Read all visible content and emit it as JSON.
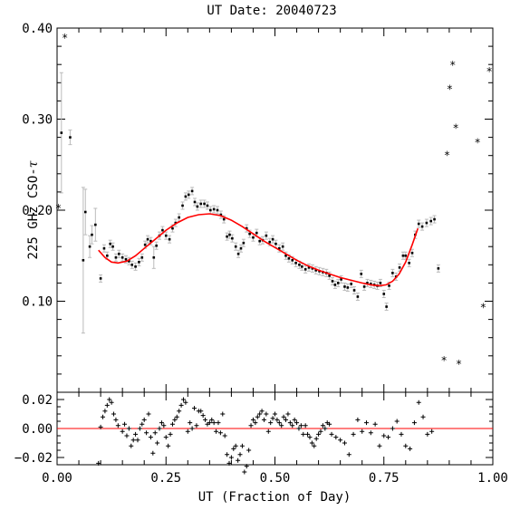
{
  "chart_data": {
    "type": "scatter",
    "title": "UT Date: 20040723",
    "xlabel": "UT (Fraction of Day)",
    "ylabel": "225 GHz CSO-",
    "ylabel_symbol": "τ",
    "xlim": [
      0.0,
      1.0
    ],
    "ylim": [
      0.0,
      0.4
    ],
    "x_ticks": [
      "0.00",
      "0.25",
      "0.50",
      "0.75",
      "1.00"
    ],
    "y_ticks": [
      "0.10",
      "0.20",
      "0.30",
      "0.40"
    ],
    "residual_ylim": [
      -0.025,
      0.025
    ],
    "residual_ticks": [
      "−0.02",
      "0.00",
      "0.02"
    ],
    "colors": {
      "fit": "#ff0000",
      "error_bar": "#bbbbbb",
      "points": "#000000",
      "axes": "#000000"
    },
    "measurements": [
      [
        0.01,
        0.285,
        0.066
      ],
      [
        0.03,
        0.28,
        0.008
      ],
      [
        0.06,
        0.145,
        0.08
      ],
      [
        0.065,
        0.198,
        0.025
      ],
      [
        0.075,
        0.16,
        0.012
      ],
      [
        0.08,
        0.173,
        0.01
      ],
      [
        0.088,
        0.184,
        0.018
      ],
      [
        0.1,
        0.125,
        0.004
      ],
      [
        0.108,
        0.158,
        0.004
      ],
      [
        0.115,
        0.15,
        0.004
      ],
      [
        0.122,
        0.163,
        0.004
      ],
      [
        0.128,
        0.16,
        0.004
      ],
      [
        0.135,
        0.148,
        0.004
      ],
      [
        0.142,
        0.152,
        0.004
      ],
      [
        0.15,
        0.148,
        0.004
      ],
      [
        0.158,
        0.146,
        0.004
      ],
      [
        0.165,
        0.144,
        0.004
      ],
      [
        0.172,
        0.14,
        0.004
      ],
      [
        0.18,
        0.138,
        0.004
      ],
      [
        0.188,
        0.143,
        0.004
      ],
      [
        0.195,
        0.148,
        0.004
      ],
      [
        0.202,
        0.162,
        0.004
      ],
      [
        0.208,
        0.168,
        0.004
      ],
      [
        0.215,
        0.166,
        0.004
      ],
      [
        0.222,
        0.148,
        0.012
      ],
      [
        0.228,
        0.161,
        0.004
      ],
      [
        0.235,
        0.172,
        0.004
      ],
      [
        0.242,
        0.178,
        0.004
      ],
      [
        0.25,
        0.172,
        0.004
      ],
      [
        0.258,
        0.168,
        0.004
      ],
      [
        0.265,
        0.18,
        0.004
      ],
      [
        0.272,
        0.186,
        0.004
      ],
      [
        0.28,
        0.192,
        0.004
      ],
      [
        0.288,
        0.205,
        0.004
      ],
      [
        0.295,
        0.215,
        0.004
      ],
      [
        0.302,
        0.217,
        0.004
      ],
      [
        0.31,
        0.221,
        0.004
      ],
      [
        0.316,
        0.209,
        0.004
      ],
      [
        0.322,
        0.204,
        0.004
      ],
      [
        0.33,
        0.207,
        0.004
      ],
      [
        0.338,
        0.207,
        0.004
      ],
      [
        0.345,
        0.205,
        0.004
      ],
      [
        0.352,
        0.2,
        0.004
      ],
      [
        0.36,
        0.201,
        0.004
      ],
      [
        0.368,
        0.2,
        0.004
      ],
      [
        0.376,
        0.195,
        0.004
      ],
      [
        0.383,
        0.19,
        0.004
      ],
      [
        0.39,
        0.171,
        0.004
      ],
      [
        0.396,
        0.173,
        0.004
      ],
      [
        0.402,
        0.169,
        0.004
      ],
      [
        0.41,
        0.16,
        0.004
      ],
      [
        0.416,
        0.152,
        0.004
      ],
      [
        0.422,
        0.158,
        0.004
      ],
      [
        0.428,
        0.164,
        0.004
      ],
      [
        0.435,
        0.18,
        0.004
      ],
      [
        0.442,
        0.174,
        0.004
      ],
      [
        0.45,
        0.17,
        0.004
      ],
      [
        0.458,
        0.175,
        0.004
      ],
      [
        0.465,
        0.166,
        0.004
      ],
      [
        0.472,
        0.167,
        0.004
      ],
      [
        0.48,
        0.172,
        0.004
      ],
      [
        0.488,
        0.165,
        0.004
      ],
      [
        0.495,
        0.168,
        0.004
      ],
      [
        0.502,
        0.163,
        0.004
      ],
      [
        0.51,
        0.158,
        0.004
      ],
      [
        0.518,
        0.16,
        0.004
      ],
      [
        0.525,
        0.15,
        0.004
      ],
      [
        0.532,
        0.147,
        0.004
      ],
      [
        0.54,
        0.145,
        0.004
      ],
      [
        0.548,
        0.142,
        0.004
      ],
      [
        0.556,
        0.14,
        0.004
      ],
      [
        0.562,
        0.138,
        0.004
      ],
      [
        0.57,
        0.135,
        0.004
      ],
      [
        0.578,
        0.137,
        0.004
      ],
      [
        0.586,
        0.136,
        0.004
      ],
      [
        0.594,
        0.134,
        0.004
      ],
      [
        0.602,
        0.133,
        0.004
      ],
      [
        0.61,
        0.132,
        0.004
      ],
      [
        0.618,
        0.131,
        0.004
      ],
      [
        0.625,
        0.128,
        0.004
      ],
      [
        0.632,
        0.122,
        0.004
      ],
      [
        0.638,
        0.118,
        0.004
      ],
      [
        0.645,
        0.12,
        0.004
      ],
      [
        0.652,
        0.124,
        0.004
      ],
      [
        0.66,
        0.116,
        0.004
      ],
      [
        0.667,
        0.115,
        0.004
      ],
      [
        0.675,
        0.119,
        0.004
      ],
      [
        0.682,
        0.112,
        0.004
      ],
      [
        0.69,
        0.105,
        0.004
      ],
      [
        0.698,
        0.13,
        0.004
      ],
      [
        0.705,
        0.116,
        0.004
      ],
      [
        0.712,
        0.12,
        0.004
      ],
      [
        0.72,
        0.119,
        0.004
      ],
      [
        0.728,
        0.118,
        0.004
      ],
      [
        0.735,
        0.117,
        0.004
      ],
      [
        0.742,
        0.12,
        0.004
      ],
      [
        0.75,
        0.108,
        0.004
      ],
      [
        0.756,
        0.094,
        0.004
      ],
      [
        0.762,
        0.117,
        0.004
      ],
      [
        0.77,
        0.131,
        0.004
      ],
      [
        0.778,
        0.127,
        0.004
      ],
      [
        0.786,
        0.137,
        0.004
      ],
      [
        0.794,
        0.15,
        0.004
      ],
      [
        0.8,
        0.15,
        0.004
      ],
      [
        0.808,
        0.142,
        0.004
      ],
      [
        0.815,
        0.153,
        0.004
      ],
      [
        0.822,
        0.173,
        0.004
      ],
      [
        0.83,
        0.185,
        0.004
      ],
      [
        0.838,
        0.182,
        0.004
      ],
      [
        0.848,
        0.186,
        0.004
      ],
      [
        0.858,
        0.188,
        0.004
      ],
      [
        0.866,
        0.19,
        0.004
      ],
      [
        0.875,
        0.136,
        0.004
      ]
    ],
    "outliers": [
      [
        0.003,
        0.203
      ],
      [
        0.018,
        0.39
      ],
      [
        0.888,
        0.036
      ],
      [
        0.895,
        0.261
      ],
      [
        0.901,
        0.334
      ],
      [
        0.908,
        0.36
      ],
      [
        0.915,
        0.291
      ],
      [
        0.922,
        0.032
      ],
      [
        0.965,
        0.275
      ],
      [
        0.978,
        0.094
      ],
      [
        0.992,
        0.353
      ]
    ],
    "fit_curve": [
      [
        0.095,
        0.156
      ],
      [
        0.11,
        0.148
      ],
      [
        0.125,
        0.143
      ],
      [
        0.14,
        0.142
      ],
      [
        0.16,
        0.144
      ],
      [
        0.18,
        0.15
      ],
      [
        0.2,
        0.158
      ],
      [
        0.225,
        0.168
      ],
      [
        0.25,
        0.178
      ],
      [
        0.275,
        0.186
      ],
      [
        0.3,
        0.192
      ],
      [
        0.325,
        0.195
      ],
      [
        0.35,
        0.196
      ],
      [
        0.375,
        0.194
      ],
      [
        0.4,
        0.189
      ],
      [
        0.425,
        0.182
      ],
      [
        0.45,
        0.174
      ],
      [
        0.475,
        0.166
      ],
      [
        0.5,
        0.159
      ],
      [
        0.525,
        0.152
      ],
      [
        0.55,
        0.145
      ],
      [
        0.575,
        0.139
      ],
      [
        0.6,
        0.134
      ],
      [
        0.625,
        0.13
      ],
      [
        0.65,
        0.126
      ],
      [
        0.675,
        0.123
      ],
      [
        0.7,
        0.12
      ],
      [
        0.72,
        0.118
      ],
      [
        0.74,
        0.117
      ],
      [
        0.755,
        0.118
      ],
      [
        0.77,
        0.122
      ],
      [
        0.785,
        0.13
      ],
      [
        0.8,
        0.143
      ],
      [
        0.815,
        0.162
      ],
      [
        0.828,
        0.18
      ]
    ],
    "residuals": [
      [
        0.095,
        -0.024
      ],
      [
        0.1,
        0.001
      ],
      [
        0.105,
        0.008
      ],
      [
        0.11,
        0.012
      ],
      [
        0.115,
        0.016
      ],
      [
        0.12,
        0.02
      ],
      [
        0.125,
        0.018
      ],
      [
        0.13,
        0.01
      ],
      [
        0.135,
        0.006
      ],
      [
        0.14,
        0.002
      ],
      [
        0.15,
        -0.002
      ],
      [
        0.155,
        0.003
      ],
      [
        0.16,
        -0.005
      ],
      [
        0.165,
        0.0
      ],
      [
        0.17,
        -0.012
      ],
      [
        0.175,
        -0.008
      ],
      [
        0.18,
        -0.004
      ],
      [
        0.185,
        -0.008
      ],
      [
        0.19,
        0.0
      ],
      [
        0.195,
        0.003
      ],
      [
        0.2,
        0.006
      ],
      [
        0.205,
        -0.003
      ],
      [
        0.21,
        0.01
      ],
      [
        0.215,
        -0.006
      ],
      [
        0.22,
        -0.017
      ],
      [
        0.225,
        -0.003
      ],
      [
        0.23,
        -0.01
      ],
      [
        0.235,
        0.0
      ],
      [
        0.24,
        0.004
      ],
      [
        0.245,
        0.002
      ],
      [
        0.25,
        -0.006
      ],
      [
        0.255,
        -0.012
      ],
      [
        0.26,
        -0.004
      ],
      [
        0.265,
        0.003
      ],
      [
        0.27,
        0.006
      ],
      [
        0.275,
        0.008
      ],
      [
        0.28,
        0.012
      ],
      [
        0.285,
        0.016
      ],
      [
        0.29,
        0.02
      ],
      [
        0.295,
        0.018
      ],
      [
        0.3,
        -0.002
      ],
      [
        0.305,
        0.004
      ],
      [
        0.31,
        0.0
      ],
      [
        0.315,
        0.014
      ],
      [
        0.32,
        0.002
      ],
      [
        0.325,
        0.012
      ],
      [
        0.33,
        0.012
      ],
      [
        0.335,
        0.009
      ],
      [
        0.34,
        0.006
      ],
      [
        0.345,
        0.003
      ],
      [
        0.35,
        0.004
      ],
      [
        0.355,
        0.006
      ],
      [
        0.36,
        0.004
      ],
      [
        0.365,
        -0.002
      ],
      [
        0.37,
        0.004
      ],
      [
        0.375,
        -0.003
      ],
      [
        0.38,
        0.01
      ],
      [
        0.385,
        -0.005
      ],
      [
        0.39,
        -0.018
      ],
      [
        0.395,
        -0.024
      ],
      [
        0.4,
        -0.02
      ],
      [
        0.405,
        -0.014
      ],
      [
        0.41,
        -0.012
      ],
      [
        0.415,
        -0.022
      ],
      [
        0.42,
        -0.018
      ],
      [
        0.425,
        -0.012
      ],
      [
        0.43,
        -0.03
      ],
      [
        0.435,
        -0.026
      ],
      [
        0.44,
        -0.015
      ],
      [
        0.445,
        0.002
      ],
      [
        0.45,
        0.006
      ],
      [
        0.455,
        0.004
      ],
      [
        0.46,
        0.008
      ],
      [
        0.465,
        0.01
      ],
      [
        0.47,
        0.012
      ],
      [
        0.475,
        0.006
      ],
      [
        0.48,
        0.01
      ],
      [
        0.485,
        -0.002
      ],
      [
        0.49,
        0.004
      ],
      [
        0.495,
        0.007
      ],
      [
        0.5,
        0.01
      ],
      [
        0.505,
        0.006
      ],
      [
        0.51,
        0.004
      ],
      [
        0.515,
        0.002
      ],
      [
        0.52,
        0.008
      ],
      [
        0.525,
        0.006
      ],
      [
        0.53,
        0.01
      ],
      [
        0.535,
        0.004
      ],
      [
        0.54,
        0.002
      ],
      [
        0.545,
        0.006
      ],
      [
        0.55,
        0.004
      ],
      [
        0.555,
        0.0
      ],
      [
        0.56,
        0.002
      ],
      [
        0.565,
        -0.004
      ],
      [
        0.57,
        0.002
      ],
      [
        0.575,
        -0.004
      ],
      [
        0.58,
        -0.006
      ],
      [
        0.585,
        -0.01
      ],
      [
        0.59,
        -0.012
      ],
      [
        0.595,
        -0.007
      ],
      [
        0.6,
        -0.004
      ],
      [
        0.605,
        -0.002
      ],
      [
        0.61,
        0.002
      ],
      [
        0.615,
        0.0
      ],
      [
        0.62,
        0.004
      ],
      [
        0.625,
        0.003
      ],
      [
        0.63,
        -0.004
      ],
      [
        0.64,
        -0.006
      ],
      [
        0.65,
        -0.008
      ],
      [
        0.66,
        -0.01
      ],
      [
        0.67,
        -0.018
      ],
      [
        0.68,
        -0.004
      ],
      [
        0.69,
        0.006
      ],
      [
        0.7,
        -0.002
      ],
      [
        0.71,
        0.004
      ],
      [
        0.72,
        -0.003
      ],
      [
        0.73,
        0.003
      ],
      [
        0.74,
        -0.012
      ],
      [
        0.75,
        -0.005
      ],
      [
        0.76,
        -0.006
      ],
      [
        0.77,
        0.0
      ],
      [
        0.78,
        0.005
      ],
      [
        0.79,
        -0.004
      ],
      [
        0.8,
        -0.012
      ],
      [
        0.81,
        -0.014
      ],
      [
        0.82,
        0.004
      ],
      [
        0.83,
        0.018
      ],
      [
        0.84,
        0.008
      ],
      [
        0.85,
        -0.004
      ],
      [
        0.86,
        -0.002
      ]
    ]
  }
}
